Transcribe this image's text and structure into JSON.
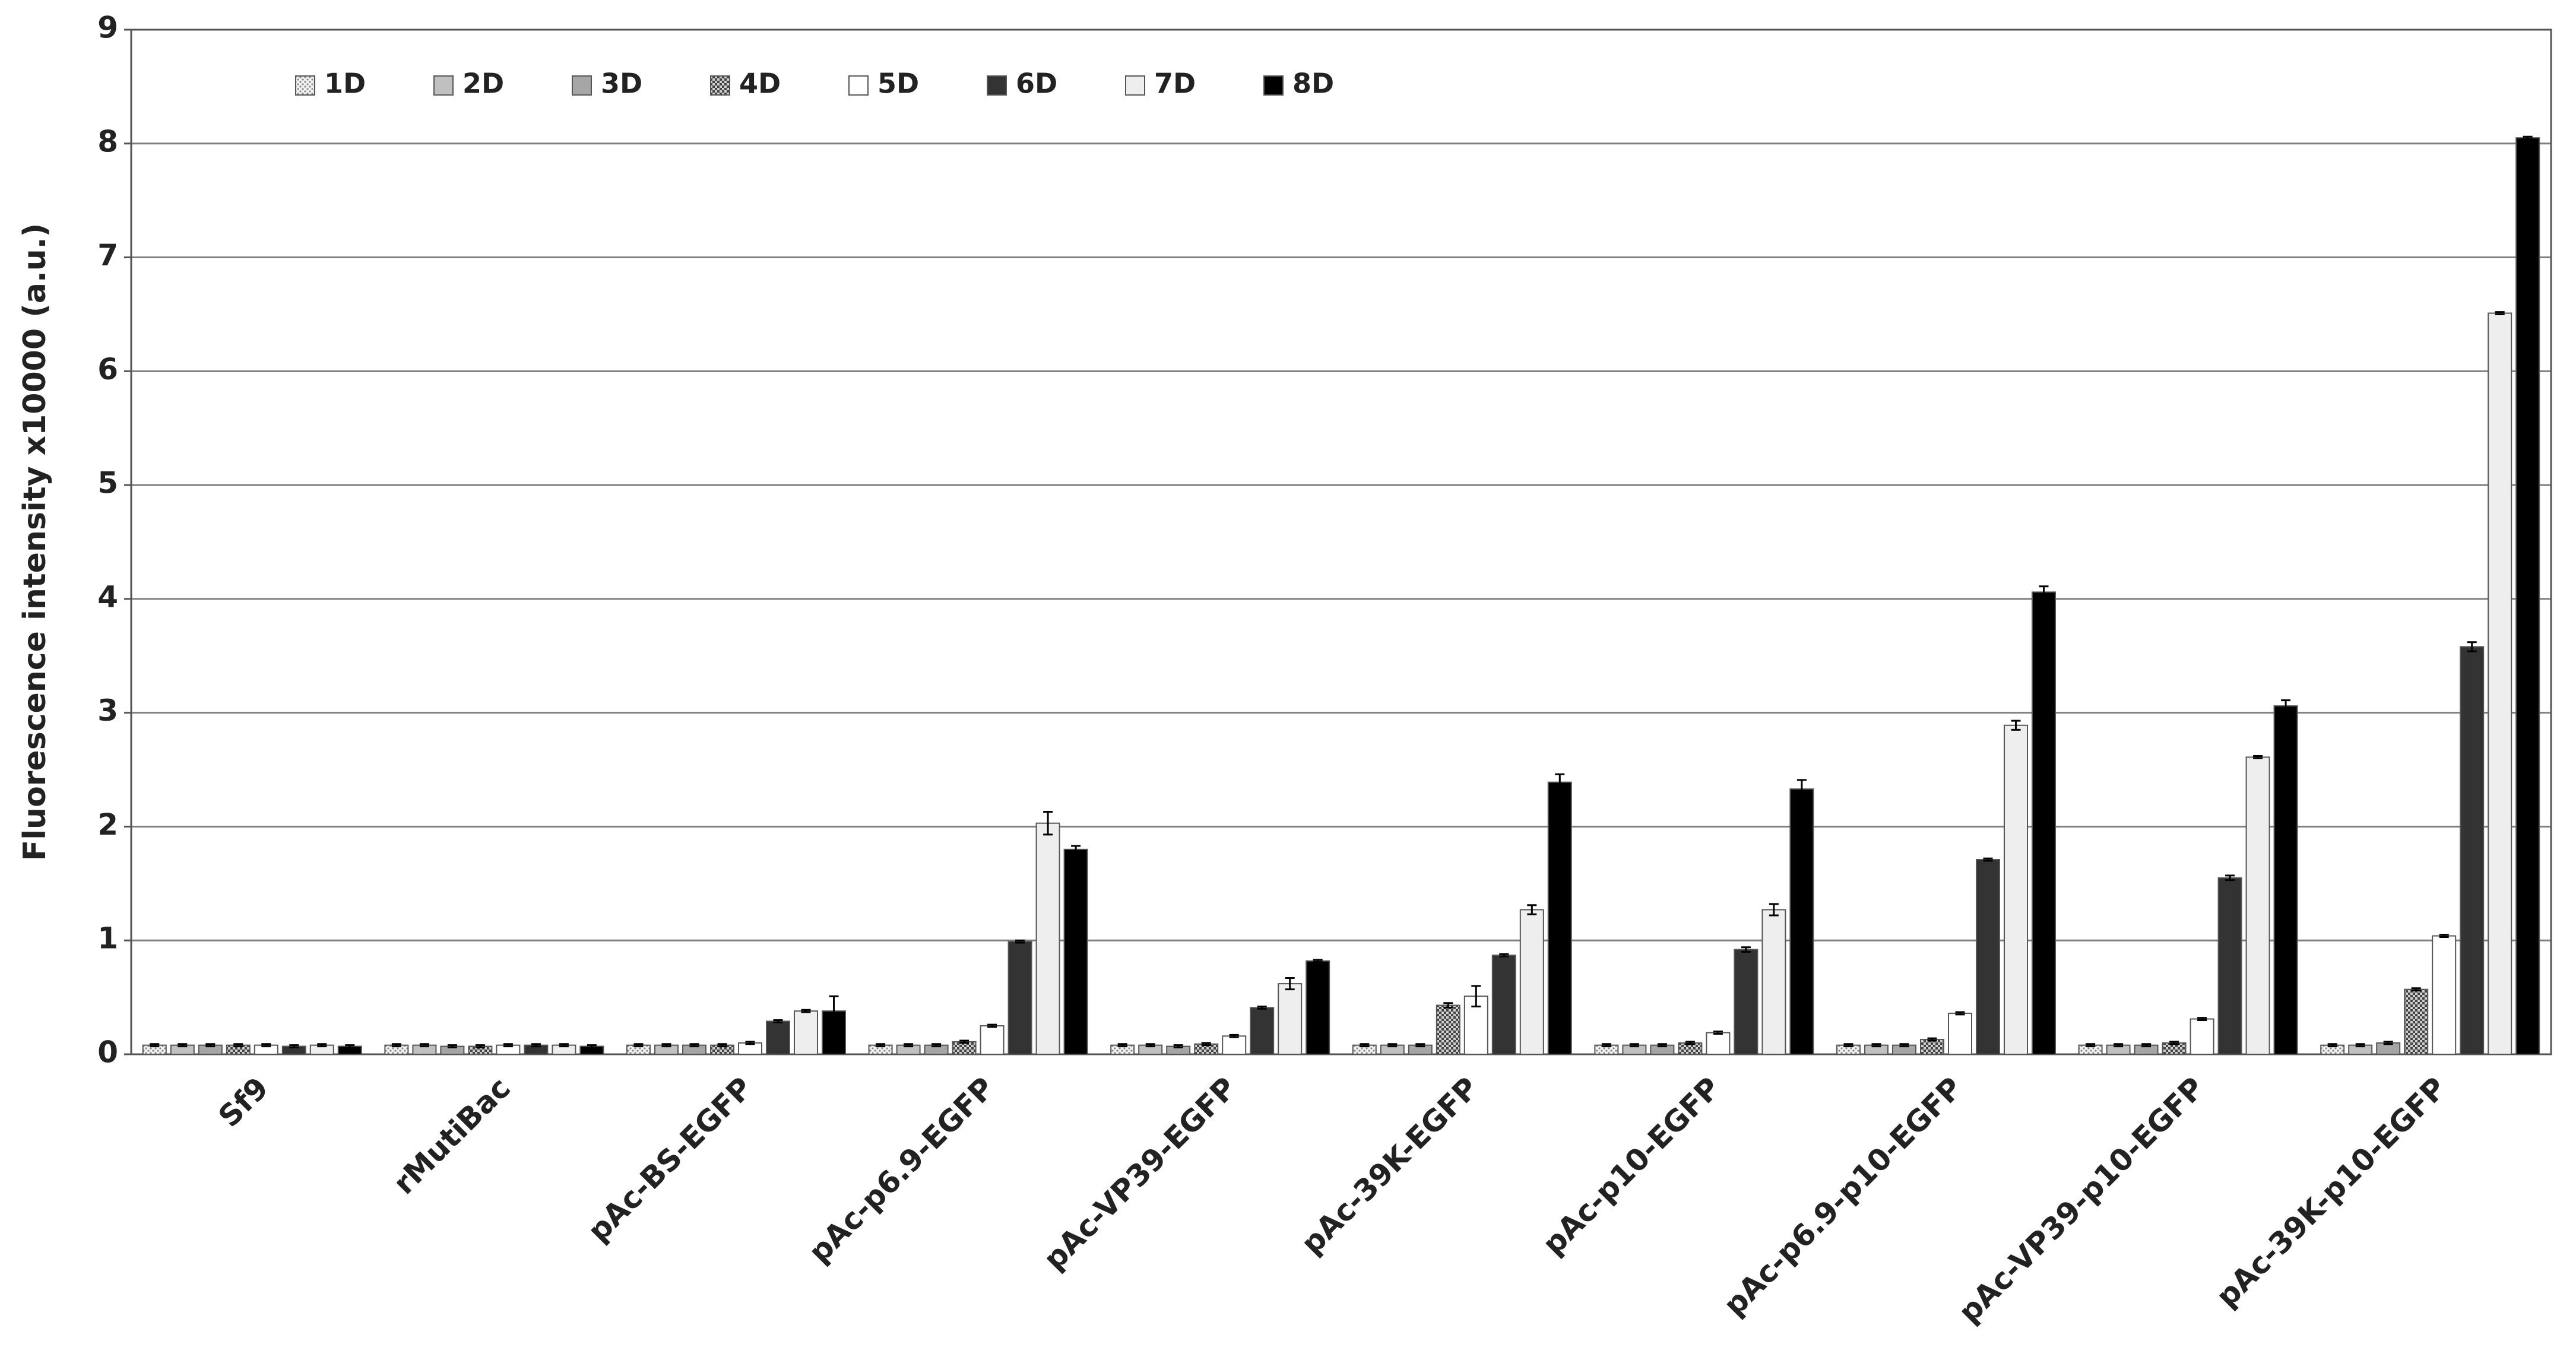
{
  "chart_data": {
    "type": "bar",
    "y_label": "Fluorescence intensity x10000 (a.u.)",
    "categories": [
      "Sf9",
      "rMutiBac",
      "pAc-BS-EGFP",
      "pAc-p6.9-EGFP",
      "pAc-VP39-EGFP",
      "pAc-39K-EGFP",
      "pAc-p10-EGFP",
      "pAc-p6.9-p10-EGFP",
      "pAc-VP39-p10-EGFP",
      "pAc-39K-p10-EGFP"
    ],
    "ylim": [
      0,
      9
    ],
    "yticks": [
      0,
      1,
      2,
      3,
      4,
      5,
      6,
      7,
      8,
      9
    ],
    "grid": true,
    "legend": "top-left",
    "series": [
      {
        "name": "1D",
        "color": "#d9d9d9",
        "pattern": "dots",
        "values": [
          0.08,
          0.08,
          0.08,
          0.08,
          0.08,
          0.08,
          0.08,
          0.08,
          0.08,
          0.08
        ],
        "errors": [
          0.01,
          0.01,
          0.01,
          0.01,
          0.01,
          0.01,
          0.01,
          0.01,
          0.01,
          0.01
        ]
      },
      {
        "name": "2D",
        "color": "#c0c0c0",
        "values": [
          0.08,
          0.08,
          0.08,
          0.08,
          0.08,
          0.08,
          0.08,
          0.08,
          0.08,
          0.08
        ],
        "errors": [
          0.01,
          0.01,
          0.01,
          0.01,
          0.01,
          0.01,
          0.01,
          0.01,
          0.01,
          0.01
        ]
      },
      {
        "name": "3D",
        "color": "#a6a6a6",
        "values": [
          0.08,
          0.07,
          0.08,
          0.08,
          0.07,
          0.08,
          0.08,
          0.08,
          0.08,
          0.1
        ],
        "errors": [
          0.01,
          0.01,
          0.01,
          0.01,
          0.01,
          0.01,
          0.01,
          0.01,
          0.01,
          0.01
        ]
      },
      {
        "name": "4D",
        "color": "#595959",
        "pattern": "checker",
        "values": [
          0.08,
          0.07,
          0.08,
          0.11,
          0.09,
          0.43,
          0.1,
          0.13,
          0.1,
          0.57
        ],
        "errors": [
          0.01,
          0.01,
          0.01,
          0.01,
          0.01,
          0.02,
          0.01,
          0.01,
          0.01,
          0.01
        ]
      },
      {
        "name": "5D",
        "color": "#ffffff",
        "values": [
          0.08,
          0.08,
          0.1,
          0.25,
          0.16,
          0.51,
          0.19,
          0.36,
          0.31,
          1.04
        ],
        "errors": [
          0.01,
          0.01,
          0.01,
          0.01,
          0.01,
          0.09,
          0.01,
          0.01,
          0.01,
          0.01
        ]
      },
      {
        "name": "6D",
        "color": "#333333",
        "values": [
          0.07,
          0.08,
          0.29,
          0.99,
          0.41,
          0.87,
          0.92,
          1.71,
          1.55,
          3.58
        ],
        "errors": [
          0.01,
          0.01,
          0.01,
          0.01,
          0.01,
          0.01,
          0.02,
          0.01,
          0.02,
          0.04
        ]
      },
      {
        "name": "7D",
        "color": "#eeeeee",
        "values": [
          0.08,
          0.08,
          0.38,
          2.03,
          0.62,
          1.27,
          1.27,
          2.89,
          2.61,
          6.51
        ],
        "errors": [
          0.01,
          0.01,
          0.01,
          0.1,
          0.05,
          0.04,
          0.05,
          0.04,
          0.01,
          0.01
        ]
      },
      {
        "name": "8D",
        "color": "#000000",
        "values": [
          0.07,
          0.07,
          0.38,
          1.8,
          0.82,
          2.39,
          2.33,
          4.06,
          3.06,
          8.05
        ],
        "errors": [
          0.01,
          0.01,
          0.13,
          0.03,
          0.01,
          0.07,
          0.08,
          0.05,
          0.05,
          0.01
        ]
      }
    ]
  }
}
